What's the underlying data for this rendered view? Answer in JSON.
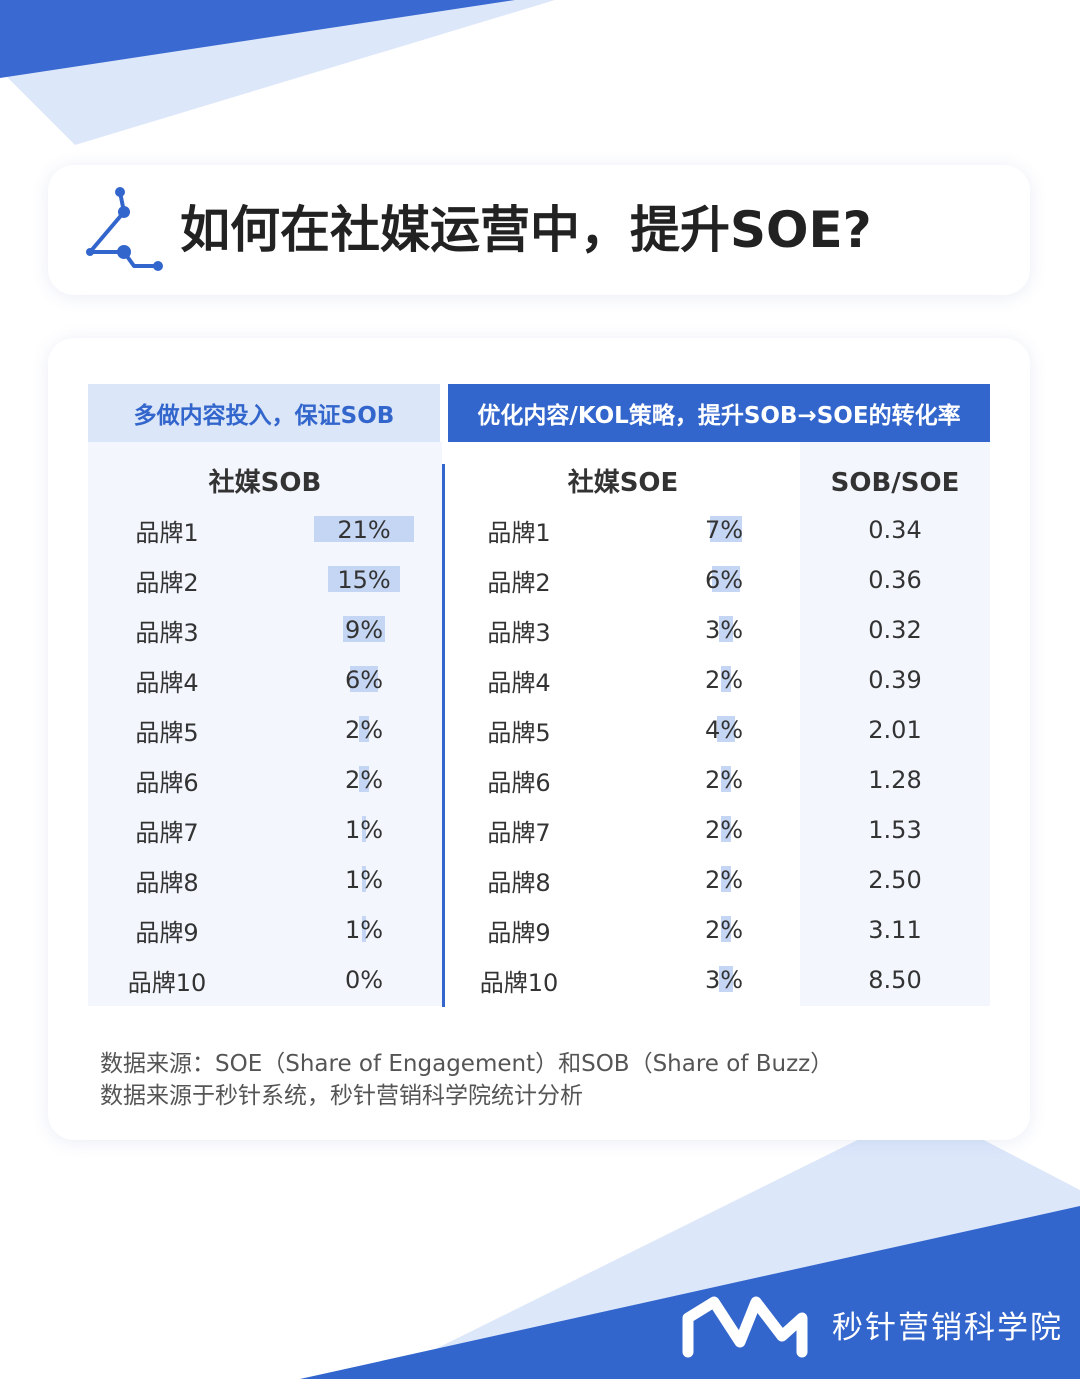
{
  "title": "如何在社媒运营中，提升SOE?",
  "headers": {
    "left": "多做内容投入，保证SOB",
    "right": "优化内容/KOL策略，提升SOB→SOE的转化率"
  },
  "chart_data": {
    "type": "table",
    "columns": [
      "社媒SOB",
      "社媒SOE",
      "SOB/SOE"
    ],
    "rows": [
      {
        "brand": "品牌1",
        "sob": "21%",
        "sob_value": 21,
        "soe": "7%",
        "soe_value": 7,
        "ratio": "0.34"
      },
      {
        "brand": "品牌2",
        "sob": "15%",
        "sob_value": 15,
        "soe": "6%",
        "soe_value": 6,
        "ratio": "0.36"
      },
      {
        "brand": "品牌3",
        "sob": "9%",
        "sob_value": 9,
        "soe": "3%",
        "soe_value": 3,
        "ratio": "0.32"
      },
      {
        "brand": "品牌4",
        "sob": "6%",
        "sob_value": 6,
        "soe": "2%",
        "soe_value": 2,
        "ratio": "0.39"
      },
      {
        "brand": "品牌5",
        "sob": "2%",
        "sob_value": 2,
        "soe": "4%",
        "soe_value": 4,
        "ratio": "2.01"
      },
      {
        "brand": "品牌6",
        "sob": "2%",
        "sob_value": 2,
        "soe": "2%",
        "soe_value": 2,
        "ratio": "1.28"
      },
      {
        "brand": "品牌7",
        "sob": "1%",
        "sob_value": 1,
        "soe": "2%",
        "soe_value": 2,
        "ratio": "1.53"
      },
      {
        "brand": "品牌8",
        "sob": "1%",
        "sob_value": 1,
        "soe": "2%",
        "soe_value": 2,
        "ratio": "2.50"
      },
      {
        "brand": "品牌9",
        "sob": "1%",
        "sob_value": 1,
        "soe": "2%",
        "soe_value": 2,
        "ratio": "3.11"
      },
      {
        "brand": "品牌10",
        "sob": "0%",
        "sob_value": 0,
        "soe": "3%",
        "soe_value": 3,
        "ratio": "8.50"
      }
    ]
  },
  "notes": [
    "数据来源：SOE（Share of Engagement）和SOB（Share of Buzz）",
    "数据来源于秒针系统，秒针营销科学院统计分析"
  ],
  "brand": {
    "name": "秒针营销科学院"
  },
  "colors": {
    "accent": "#3366cc",
    "light_panel": "#f3f6fd",
    "bar": "#c4d6f4",
    "header_light": "#dbe6f8"
  },
  "icons": {
    "title": "constellation-icon",
    "brand": "miaozhen-logo-icon"
  }
}
